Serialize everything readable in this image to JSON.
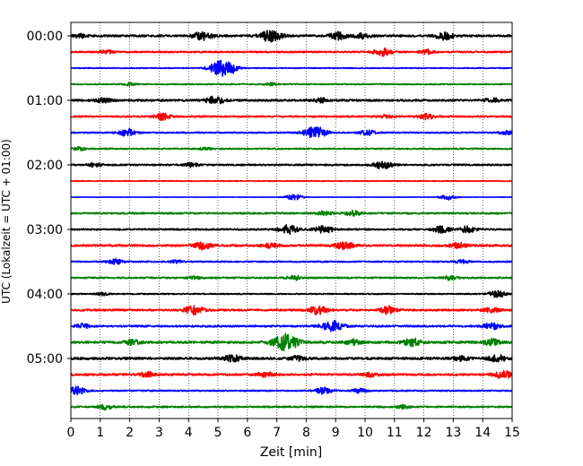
{
  "chart_data": {
    "type": "line",
    "xlabel": "Zeit  [min]",
    "ylabel": "UTC (Lokalzeit = UTC + 01:00)",
    "xlim": [
      0,
      15
    ],
    "x_ticks": [
      "0",
      "1",
      "2",
      "3",
      "4",
      "5",
      "6",
      "7",
      "8",
      "9",
      "10",
      "11",
      "12",
      "13",
      "14",
      "15"
    ],
    "y_tick_labels": [
      "00:00",
      "01:00",
      "02:00",
      "03:00",
      "04:00",
      "05:00"
    ],
    "trace_interval_minutes": 15,
    "grid": "vertical dotted lines at each minute",
    "trace_colors": [
      "#000000",
      "#ff0000",
      "#0000ff",
      "#008000"
    ],
    "traces": [
      {
        "start": "00:00",
        "color": "#000000",
        "noise": 0.45,
        "events": [
          [
            0.3,
            0.7
          ],
          [
            4.5,
            2.0
          ],
          [
            6.8,
            2.6
          ],
          [
            9.1,
            1.6
          ],
          [
            9.9,
            1.2
          ],
          [
            12.7,
            1.7
          ]
        ]
      },
      {
        "start": "00:15",
        "color": "#ff0000",
        "noise": 0.35,
        "events": [
          [
            1.2,
            0.8
          ],
          [
            10.6,
            1.7
          ],
          [
            12.1,
            1.0
          ]
        ]
      },
      {
        "start": "00:30",
        "color": "#0000ff",
        "noise": 0.2,
        "events": [
          [
            5.1,
            3.1
          ],
          [
            5.4,
            1.5
          ]
        ]
      },
      {
        "start": "00:45",
        "color": "#008000",
        "noise": 0.25,
        "events": [
          [
            2.0,
            0.6
          ],
          [
            6.8,
            0.6
          ]
        ]
      },
      {
        "start": "01:00",
        "color": "#000000",
        "noise": 0.45,
        "events": [
          [
            1.1,
            1.0
          ],
          [
            4.9,
            1.7
          ],
          [
            8.5,
            0.9
          ],
          [
            14.3,
            1.1
          ]
        ]
      },
      {
        "start": "01:15",
        "color": "#ff0000",
        "noise": 0.35,
        "events": [
          [
            3.1,
            1.5
          ],
          [
            10.7,
            0.8
          ],
          [
            12.1,
            1.2
          ]
        ]
      },
      {
        "start": "01:30",
        "color": "#0000ff",
        "noise": 0.3,
        "events": [
          [
            1.9,
            1.6
          ],
          [
            8.3,
            2.8
          ],
          [
            10.1,
            1.1
          ],
          [
            14.8,
            0.8
          ]
        ]
      },
      {
        "start": "01:45",
        "color": "#008000",
        "noise": 0.3,
        "events": [
          [
            0.3,
            0.8
          ],
          [
            4.6,
            0.5
          ]
        ]
      },
      {
        "start": "02:00",
        "color": "#000000",
        "noise": 0.35,
        "events": [
          [
            0.8,
            0.8
          ],
          [
            4.1,
            0.9
          ],
          [
            10.6,
            1.8
          ]
        ]
      },
      {
        "start": "02:15",
        "color": "#ff0000",
        "noise": 0.18,
        "events": []
      },
      {
        "start": "02:30",
        "color": "#0000ff",
        "noise": 0.08,
        "events": [
          [
            7.6,
            1.4
          ],
          [
            12.8,
            1.2
          ]
        ]
      },
      {
        "start": "02:45",
        "color": "#008000",
        "noise": 0.35,
        "events": [
          [
            8.6,
            0.9
          ],
          [
            9.6,
            1.1
          ]
        ]
      },
      {
        "start": "03:00",
        "color": "#000000",
        "noise": 0.35,
        "events": [
          [
            7.4,
            2.0
          ],
          [
            8.6,
            1.8
          ],
          [
            12.6,
            1.5
          ],
          [
            13.5,
            1.4
          ]
        ]
      },
      {
        "start": "03:15",
        "color": "#ff0000",
        "noise": 0.45,
        "events": [
          [
            4.5,
            1.6
          ],
          [
            6.8,
            1.1
          ],
          [
            9.3,
            1.6
          ],
          [
            13.2,
            1.2
          ]
        ]
      },
      {
        "start": "03:30",
        "color": "#0000ff",
        "noise": 0.3,
        "events": [
          [
            1.5,
            1.2
          ],
          [
            3.6,
            0.7
          ],
          [
            13.3,
            0.8
          ]
        ]
      },
      {
        "start": "03:45",
        "color": "#008000",
        "noise": 0.35,
        "events": [
          [
            4.2,
            0.6
          ],
          [
            7.6,
            1.0
          ],
          [
            12.9,
            0.9
          ]
        ]
      },
      {
        "start": "04:00",
        "color": "#000000",
        "noise": 0.25,
        "events": [
          [
            1.1,
            0.6
          ],
          [
            14.5,
            1.5
          ]
        ]
      },
      {
        "start": "04:15",
        "color": "#ff0000",
        "noise": 0.4,
        "events": [
          [
            4.2,
            2.0
          ],
          [
            8.4,
            1.9
          ],
          [
            10.8,
            1.7
          ],
          [
            14.3,
            1.2
          ]
        ]
      },
      {
        "start": "04:30",
        "color": "#0000ff",
        "noise": 0.4,
        "events": [
          [
            0.4,
            1.0
          ],
          [
            8.9,
            2.4
          ],
          [
            14.3,
            1.4
          ]
        ]
      },
      {
        "start": "04:45",
        "color": "#008000",
        "noise": 0.5,
        "events": [
          [
            2.1,
            1.1
          ],
          [
            7.3,
            3.6
          ],
          [
            9.6,
            1.2
          ],
          [
            11.6,
            1.7
          ],
          [
            14.3,
            1.4
          ]
        ]
      },
      {
        "start": "05:00",
        "color": "#000000",
        "noise": 0.5,
        "events": [
          [
            5.5,
            1.5
          ],
          [
            7.7,
            1.0
          ],
          [
            13.3,
            1.1
          ],
          [
            14.5,
            1.6
          ]
        ]
      },
      {
        "start": "05:15",
        "color": "#ff0000",
        "noise": 0.45,
        "events": [
          [
            2.6,
            1.0
          ],
          [
            6.6,
            1.2
          ],
          [
            10.2,
            0.9
          ],
          [
            14.7,
            1.8
          ]
        ]
      },
      {
        "start": "05:30",
        "color": "#0000ff",
        "noise": 0.3,
        "events": [
          [
            0.2,
            1.8
          ],
          [
            8.6,
            1.4
          ],
          [
            9.8,
            1.0
          ]
        ]
      },
      {
        "start": "05:45",
        "color": "#008000",
        "noise": 0.35,
        "events": [
          [
            1.2,
            1.1
          ],
          [
            11.3,
            0.8
          ]
        ]
      }
    ]
  }
}
